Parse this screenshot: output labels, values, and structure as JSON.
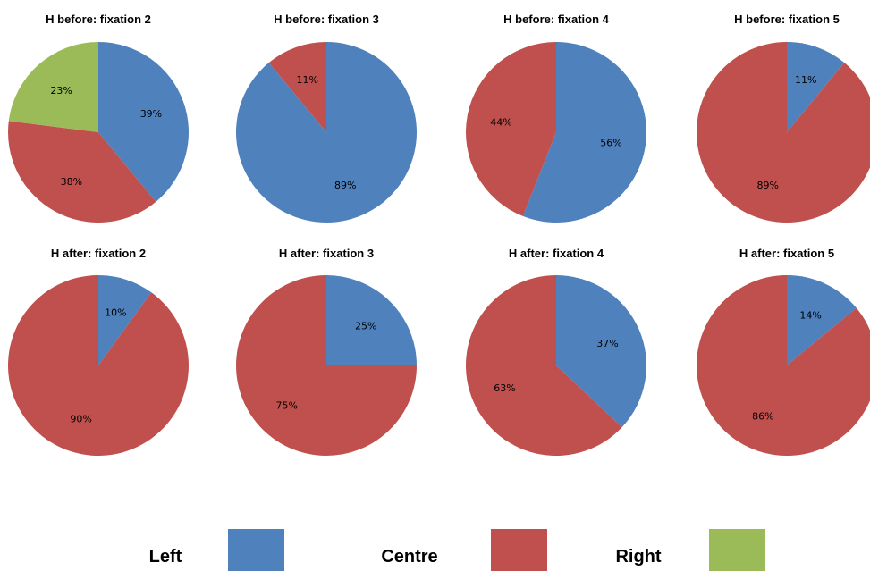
{
  "colors": {
    "Left": "#4F81BD",
    "Centre": "#C0504D",
    "Right": "#9BBB59"
  },
  "chart_data": [
    {
      "type": "pie",
      "title": "H before: fixation 2",
      "categories": [
        "Left",
        "Centre",
        "Right"
      ],
      "values": [
        39,
        38,
        23
      ],
      "labels": [
        "39%",
        "38%",
        "23%"
      ]
    },
    {
      "type": "pie",
      "title": "H before: fixation 3",
      "categories": [
        "Left",
        "Centre"
      ],
      "values": [
        89,
        11
      ],
      "labels": [
        "89%",
        "11%"
      ]
    },
    {
      "type": "pie",
      "title": "H before: fixation 4",
      "categories": [
        "Left",
        "Centre"
      ],
      "values": [
        56,
        44
      ],
      "labels": [
        "56%",
        "44%"
      ]
    },
    {
      "type": "pie",
      "title": "H before: fixation 5",
      "categories": [
        "Left",
        "Centre"
      ],
      "values": [
        11,
        89
      ],
      "labels": [
        "11%",
        "89%"
      ]
    },
    {
      "type": "pie",
      "title": "H after: fixation 2",
      "categories": [
        "Left",
        "Centre"
      ],
      "values": [
        10,
        90
      ],
      "labels": [
        "10%",
        "90%"
      ]
    },
    {
      "type": "pie",
      "title": "H after: fixation 3",
      "categories": [
        "Left",
        "Centre"
      ],
      "values": [
        25,
        75
      ],
      "labels": [
        "25%",
        "75%"
      ]
    },
    {
      "type": "pie",
      "title": "H after: fixation 4",
      "categories": [
        "Left",
        "Centre"
      ],
      "values": [
        37,
        63
      ],
      "labels": [
        "37%",
        "63%"
      ]
    },
    {
      "type": "pie",
      "title": "H after: fixation 5",
      "categories": [
        "Left",
        "Centre"
      ],
      "values": [
        14,
        86
      ],
      "labels": [
        "14%",
        "86%"
      ]
    }
  ],
  "legend": {
    "placement": "bottom",
    "items": [
      {
        "label": "Left",
        "color": "#4F81BD"
      },
      {
        "label": "Centre",
        "color": "#C0504D"
      },
      {
        "label": "Right",
        "color": "#9BBB59"
      }
    ]
  }
}
